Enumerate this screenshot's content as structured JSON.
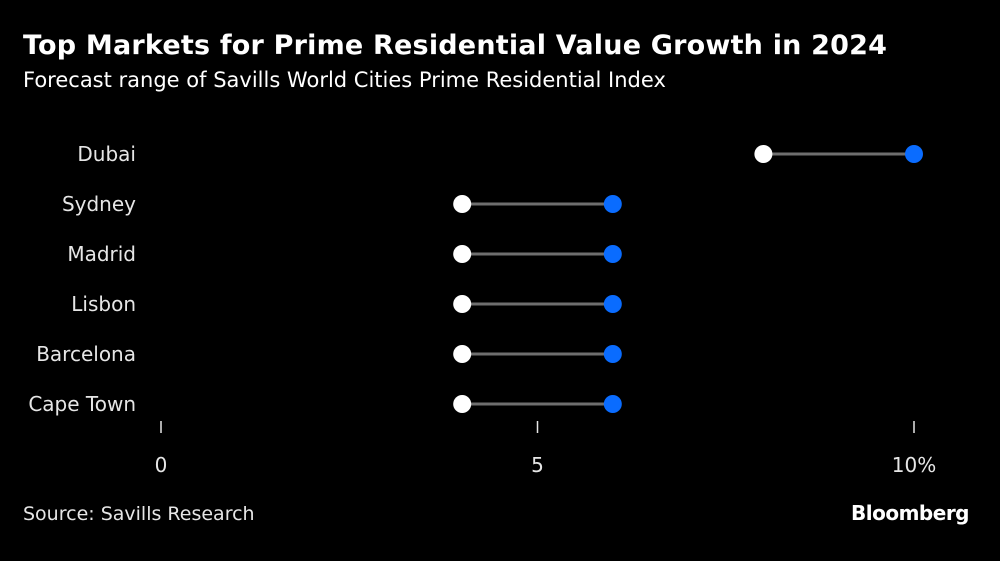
{
  "header": {
    "title": "Top Markets for Prime Residential Value Growth in 2024",
    "subtitle": "Forecast range of Savills World Cities Prime Residential Index"
  },
  "footer": {
    "source": "Source: Savills Research",
    "brand": "Bloomberg"
  },
  "chart_data": {
    "type": "dumbbell",
    "title": "Top Markets for Prime Residential Value Growth in 2024",
    "subtitle": "Forecast range of Savills World Cities Prime Residential Index",
    "categories": [
      "Dubai",
      "Sydney",
      "Madrid",
      "Lisbon",
      "Barcelona",
      "Cape Town"
    ],
    "series": [
      {
        "name": "Low",
        "color": "#ffffff",
        "values": [
          8,
          4,
          4,
          4,
          4,
          4
        ]
      },
      {
        "name": "High",
        "color": "#0a6cff",
        "values": [
          10,
          6,
          6,
          6,
          6,
          6
        ]
      }
    ],
    "connector_color": "#6e6e6e",
    "xlim": [
      0,
      10
    ],
    "xticks": [
      0,
      5,
      10
    ],
    "xtick_labels": [
      "0",
      "5",
      "10%"
    ],
    "xlabel": "",
    "ylabel": "",
    "grid": false,
    "legend": "none"
  }
}
